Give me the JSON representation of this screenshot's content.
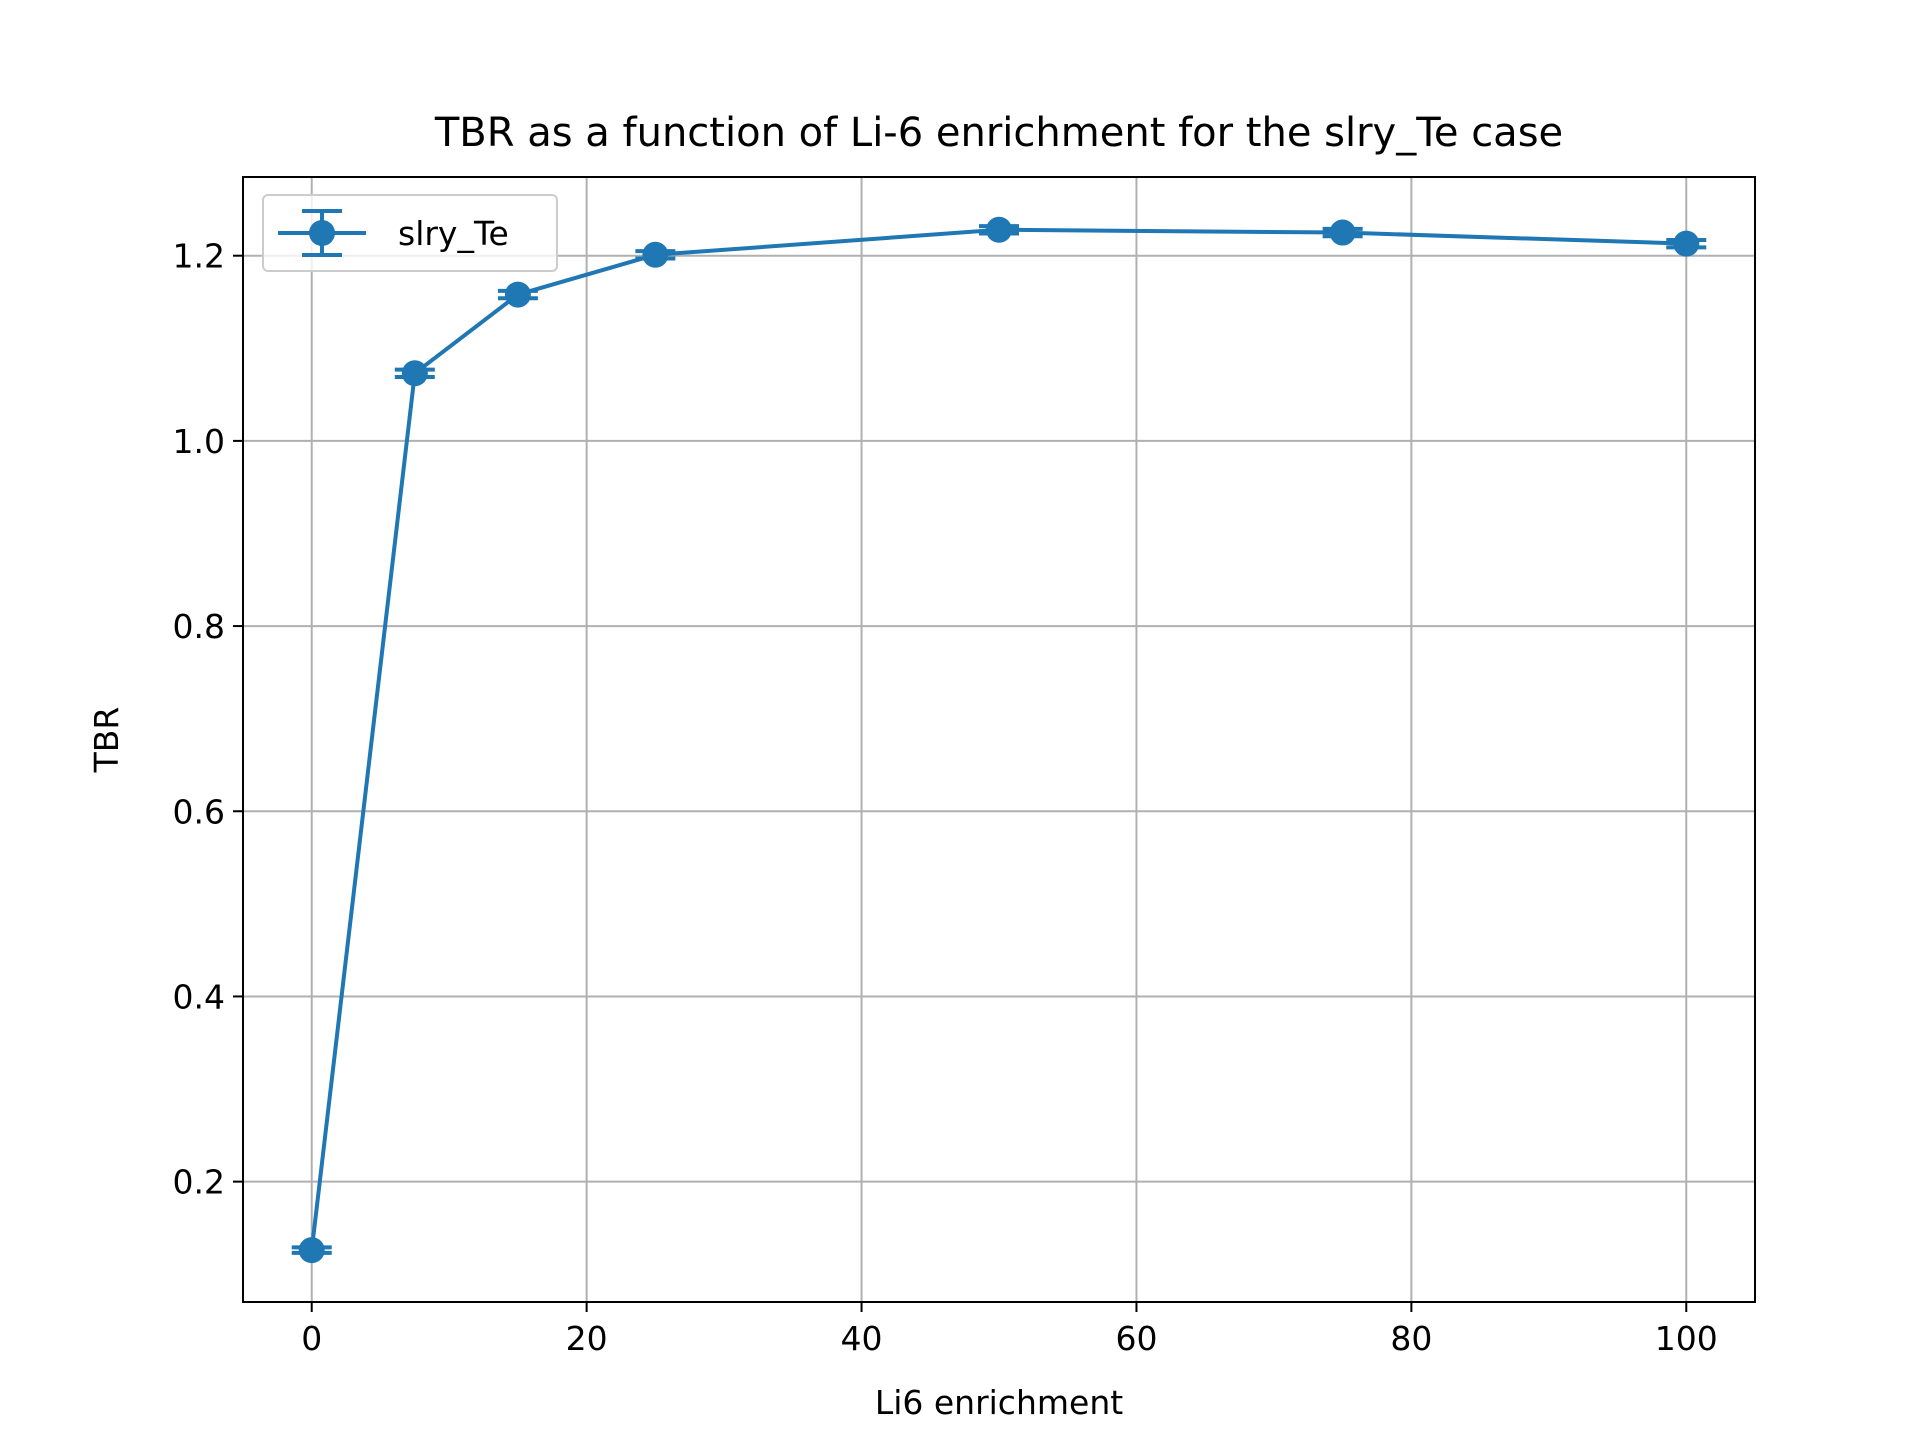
{
  "chart_data": {
    "type": "line",
    "title": "TBR as a function of Li-6 enrichment for the slry_Te case",
    "xlabel": "Li6 enrichment",
    "ylabel": "TBR",
    "xlim": [
      -5,
      105
    ],
    "ylim": [
      0.07,
      1.285
    ],
    "xticks": [
      0,
      20,
      40,
      60,
      80,
      100
    ],
    "yticks": [
      0.2,
      0.4,
      0.6,
      0.8,
      1.0,
      1.2
    ],
    "xtick_labels": [
      "0",
      "20",
      "40",
      "60",
      "80",
      "100"
    ],
    "ytick_labels": [
      "0.2",
      "0.4",
      "0.6",
      "0.8",
      "1.0",
      "1.2"
    ],
    "grid": true,
    "legend_position": "upper-left",
    "series": [
      {
        "name": "slry_Te",
        "color": "#1f77b4",
        "marker": "circle",
        "error_bars": true,
        "x": [
          0,
          7.5,
          15,
          25,
          50,
          75,
          100
        ],
        "y": [
          0.126,
          1.073,
          1.158,
          1.201,
          1.228,
          1.225,
          1.213
        ],
        "yerr": [
          0.003,
          0.004,
          0.004,
          0.004,
          0.004,
          0.004,
          0.004
        ]
      }
    ]
  }
}
